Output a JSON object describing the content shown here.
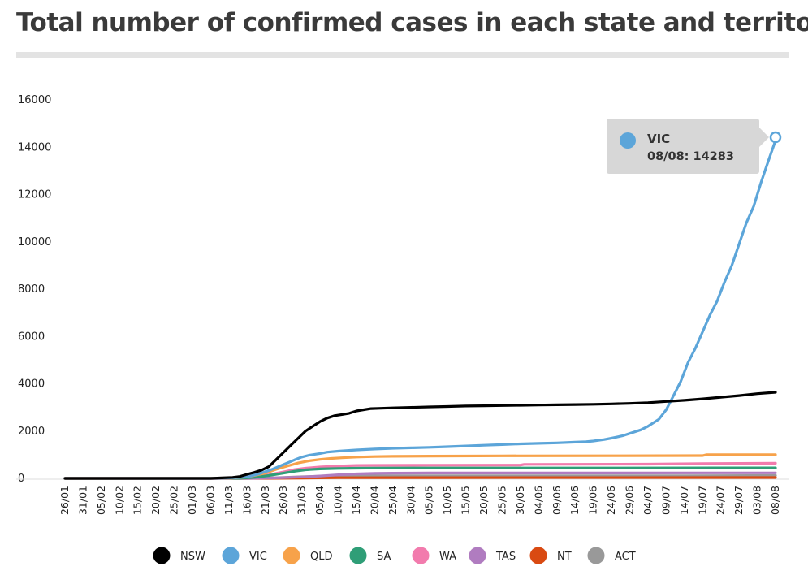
{
  "title": "Total number of confirmed cases in each state and territory",
  "chart_data": {
    "type": "line",
    "title": "Total number of confirmed cases in each state and territory",
    "xlabel": "",
    "ylabel": "",
    "ylim": [
      0,
      16000
    ],
    "yticks": [
      0,
      2000,
      4000,
      6000,
      8000,
      10000,
      12000,
      14000,
      16000
    ],
    "xticks": [
      "26/01",
      "31/01",
      "05/02",
      "10/02",
      "15/02",
      "20/02",
      "25/02",
      "01/03",
      "06/03",
      "11/03",
      "16/03",
      "21/03",
      "26/03",
      "31/03",
      "05/04",
      "10/04",
      "15/04",
      "20/04",
      "25/04",
      "30/04",
      "05/05",
      "10/05",
      "15/05",
      "20/05",
      "25/05",
      "30/05",
      "04/06",
      "09/06",
      "14/06",
      "19/06",
      "24/06",
      "29/06",
      "04/07",
      "09/07",
      "14/07",
      "19/07",
      "24/07",
      "29/07",
      "03/08",
      "08/08"
    ],
    "x_days": [
      0,
      5,
      10,
      15,
      20,
      25,
      30,
      35,
      40,
      45,
      50,
      55,
      60,
      65,
      70,
      75,
      80,
      85,
      90,
      95,
      100,
      105,
      110,
      115,
      120,
      125,
      130,
      135,
      140,
      145,
      150,
      155,
      160,
      165,
      170,
      175,
      180,
      185,
      190,
      195
    ],
    "legend_position": "bottom",
    "series": [
      {
        "name": "NSW",
        "color": "#000000",
        "x": [
          0,
          40,
          43,
          46,
          48,
          50,
          52,
          54,
          56,
          58,
          60,
          62,
          64,
          66,
          68,
          70,
          72,
          74,
          76,
          78,
          80,
          82,
          84,
          86,
          90,
          95,
          100,
          105,
          110,
          115,
          120,
          125,
          130,
          135,
          140,
          145,
          150,
          155,
          160,
          165,
          170,
          175,
          180,
          185,
          190,
          195
        ],
        "y": [
          0,
          0,
          20,
          40,
          80,
          170,
          250,
          350,
          500,
          800,
          1100,
          1400,
          1700,
          2000,
          2200,
          2400,
          2550,
          2650,
          2700,
          2750,
          2850,
          2900,
          2950,
          2960,
          2980,
          3000,
          3020,
          3040,
          3060,
          3070,
          3080,
          3090,
          3100,
          3110,
          3120,
          3130,
          3150,
          3170,
          3200,
          3250,
          3300,
          3360,
          3430,
          3500,
          3580,
          3640
        ]
      },
      {
        "name": "VIC",
        "color": "#5ca5d9",
        "x": [
          0,
          40,
          45,
          50,
          53,
          55,
          57,
          59,
          61,
          63,
          65,
          67,
          70,
          72,
          75,
          80,
          85,
          90,
          95,
          100,
          105,
          110,
          115,
          120,
          125,
          130,
          135,
          140,
          143,
          145,
          148,
          150,
          153,
          155,
          158,
          160,
          163,
          165,
          167,
          169,
          171,
          173,
          175,
          177,
          179,
          181,
          183,
          185,
          187,
          189,
          191,
          193,
          195
        ],
        "y": [
          0,
          0,
          10,
          60,
          180,
          280,
          390,
          520,
          650,
          780,
          900,
          980,
          1050,
          1110,
          1150,
          1200,
          1240,
          1270,
          1290,
          1310,
          1340,
          1370,
          1400,
          1430,
          1460,
          1480,
          1500,
          1530,
          1550,
          1580,
          1640,
          1700,
          1800,
          1900,
          2050,
          2200,
          2500,
          2900,
          3500,
          4100,
          4900,
          5500,
          6200,
          6900,
          7500,
          8300,
          9000,
          9900,
          10800,
          11500,
          12500,
          13400,
          14283
        ]
      },
      {
        "name": "QLD",
        "color": "#f7a24a",
        "x": [
          0,
          45,
          50,
          55,
          58,
          61,
          64,
          67,
          70,
          73,
          76,
          80,
          85,
          90,
          100,
          120,
          150,
          175,
          176,
          195
        ],
        "y": [
          0,
          5,
          60,
          220,
          380,
          520,
          650,
          740,
          800,
          840,
          870,
          900,
          920,
          930,
          940,
          950,
          955,
          960,
          1000,
          1000
        ]
      },
      {
        "name": "SA",
        "color": "#2f9e77",
        "x": [
          0,
          48,
          52,
          56,
          60,
          63,
          66,
          70,
          75,
          80,
          85,
          100,
          150,
          195
        ],
        "y": [
          0,
          5,
          40,
          120,
          220,
          300,
          360,
          400,
          420,
          430,
          435,
          438,
          440,
          443
        ]
      },
      {
        "name": "WA",
        "color": "#f27bad",
        "x": [
          0,
          48,
          52,
          56,
          60,
          63,
          66,
          70,
          75,
          80,
          85,
          100,
          125,
          126,
          160,
          175,
          195
        ],
        "y": [
          0,
          5,
          50,
          150,
          270,
          370,
          430,
          480,
          520,
          545,
          550,
          555,
          560,
          590,
          600,
          620,
          640
        ]
      },
      {
        "name": "TAS",
        "color": "#b07cc0",
        "x": [
          0,
          50,
          55,
          60,
          65,
          70,
          75,
          80,
          85,
          90,
          100,
          195
        ],
        "y": [
          0,
          0,
          10,
          30,
          60,
          100,
          150,
          190,
          210,
          220,
          228,
          230
        ]
      },
      {
        "name": "NT",
        "color": "#d94a12",
        "x": [
          0,
          55,
          65,
          75,
          100,
          195
        ],
        "y": [
          0,
          0,
          15,
          28,
          30,
          33
        ]
      },
      {
        "name": "ACT",
        "color": "#999999",
        "x": [
          0,
          50,
          55,
          60,
          65,
          70,
          75,
          80,
          100,
          170,
          195
        ],
        "y": [
          0,
          0,
          10,
          40,
          70,
          90,
          100,
          105,
          107,
          110,
          120
        ]
      }
    ],
    "tooltip": {
      "series": "VIC",
      "date": "08/08",
      "value": 14283,
      "label": "08/08: 14283"
    }
  }
}
